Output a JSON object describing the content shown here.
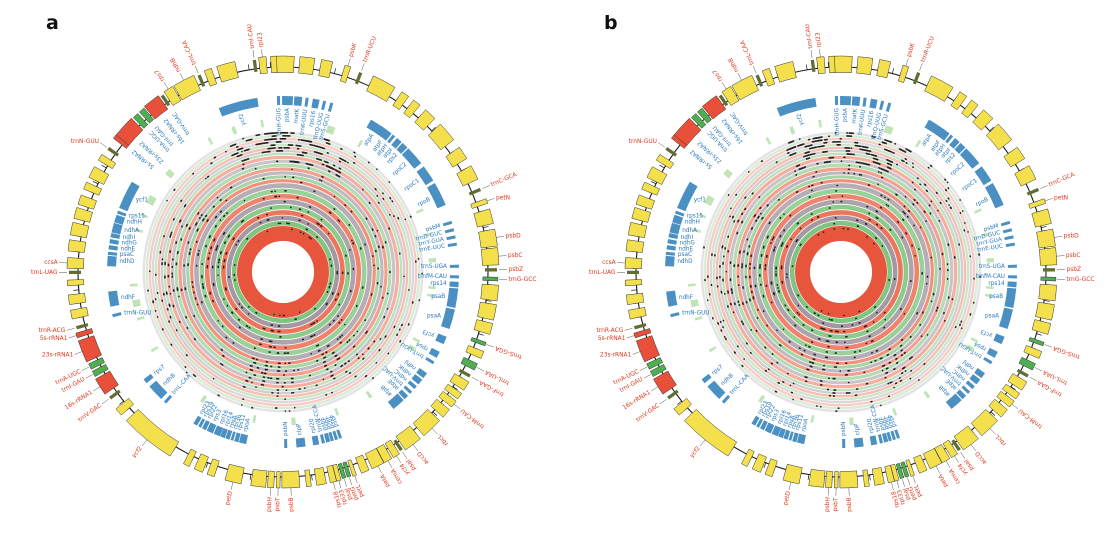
{
  "figure": {
    "panels": [
      {
        "id": "a",
        "letter": "a",
        "seed": 5
      },
      {
        "id": "b",
        "letter": "b",
        "seed": 11
      }
    ]
  },
  "chart_data": {
    "type": "circular-genome-map",
    "description": "Two circular plastid genome maps (panels a and b) with identical gene annotation rings: outer yellow/red/green gene boxes on a black circle with red labels outside, blue gene arcs with blue labels inside, pale-green accent marks, and 23 concentric colored rings (green/gray/salmon, fading outward) carrying black variant dots around a white center with an inner salmon annulus.",
    "colors": {
      "label_red": "#e0381c",
      "label_blue": "#2878bc",
      "box_yellow": "#f3e04c",
      "box_red": "#e8503a",
      "box_green": "#4fae50",
      "box_olive_tick": "#5f6e33",
      "blue_arc": "#4a90c2",
      "pale_green": "#b5dfa8",
      "ring_green": "#7fc57f",
      "ring_gray": "#a095a1",
      "ring_salmon": "#ec6a50",
      "inner_annulus": "#e6553c",
      "dot": "#222222",
      "circle_line": "#1a1a1a"
    },
    "rings": {
      "count": 23,
      "color_cycle": [
        "ring_green",
        "ring_gray",
        "ring_salmon"
      ],
      "fade_outward": true
    },
    "outer_genes": [
      [
        0,
        6,
        "y",
        "",
        ""
      ],
      [
        6.5,
        4,
        "y",
        "",
        ""
      ],
      [
        11.8,
        3,
        "y",
        "",
        ""
      ],
      [
        17.5,
        1.6,
        "y",
        "psbK",
        "r"
      ],
      [
        21.3,
        0.9,
        "t",
        "trnR-UCU",
        "r"
      ],
      [
        28,
        6.5,
        "y",
        "",
        ""
      ],
      [
        34.5,
        2.2,
        "y",
        "",
        ""
      ],
      [
        38.3,
        2.2,
        "y",
        "",
        ""
      ],
      [
        43,
        3.4,
        "y",
        "",
        ""
      ],
      [
        49.5,
        5.5,
        "y",
        "",
        ""
      ],
      [
        56.5,
        3.6,
        "y",
        "",
        ""
      ],
      [
        62.5,
        4,
        "y",
        "",
        ""
      ],
      [
        67.3,
        0.9,
        "t",
        "trnC-GCA",
        "r"
      ],
      [
        70.8,
        1.3,
        "y",
        "petN",
        "r"
      ],
      [
        75,
        4,
        "y",
        "",
        ""
      ],
      [
        80.8,
        4.6,
        "y",
        "psbD",
        "r"
      ],
      [
        85.8,
        4.6,
        "y",
        "psbC",
        "r"
      ],
      [
        89.4,
        0.9,
        "t",
        "psbZ",
        "r"
      ],
      [
        91.9,
        1,
        "g",
        "trnG-GCC",
        "r"
      ],
      [
        95.6,
        4.2,
        "y",
        "",
        ""
      ],
      [
        100.8,
        4.2,
        "y",
        "",
        ""
      ],
      [
        105.3,
        3,
        "y",
        "",
        ""
      ],
      [
        109.6,
        1,
        "g",
        "trnS-GGA",
        "r"
      ],
      [
        112.6,
        2,
        "y",
        "",
        ""
      ],
      [
        116.2,
        1.9,
        "g",
        "trnL-UAA",
        "r"
      ],
      [
        119.1,
        0.9,
        "t",
        "trnF-GAA",
        "r"
      ],
      [
        121.9,
        2.6,
        "y",
        "",
        ""
      ],
      [
        125.1,
        1.8,
        "y",
        "",
        ""
      ],
      [
        127.7,
        2,
        "y",
        "trnM-CAU",
        "r"
      ],
      [
        130.9,
        2.6,
        "y",
        "",
        ""
      ],
      [
        136.4,
        5.8,
        "y",
        "rbcL",
        "r"
      ],
      [
        143,
        5,
        "y",
        "accD",
        "r"
      ],
      [
        146.4,
        0.9,
        "t",
        "psaI",
        "r"
      ],
      [
        148.3,
        1.9,
        "y",
        "ycf4",
        "r"
      ],
      [
        150.9,
        2.3,
        "y",
        "cemA",
        "r"
      ],
      [
        153.9,
        3.5,
        "y",
        "petA",
        "r"
      ],
      [
        157.6,
        2.2,
        "y",
        "",
        ""
      ],
      [
        160.6,
        1,
        "y",
        "petL",
        "r"
      ],
      [
        162.1,
        1,
        "g",
        "petG",
        "r"
      ],
      [
        163.5,
        1,
        "g",
        "psaJ",
        "r"
      ],
      [
        165,
        1.2,
        "y",
        "rpl33",
        "r"
      ],
      [
        166.5,
        1.7,
        "y",
        "rps18",
        "r"
      ],
      [
        169.7,
        2.6,
        "y",
        "",
        ""
      ],
      [
        173.1,
        1.3,
        "y",
        "",
        ""
      ],
      [
        177.9,
        4.8,
        "y",
        "psbB",
        "r"
      ],
      [
        181.3,
        1,
        "y",
        "psbT",
        "r"
      ],
      [
        183.3,
        1.7,
        "y",
        "psbH",
        "r"
      ],
      [
        186.6,
        4,
        "y",
        "",
        ""
      ],
      [
        193.4,
        4.4,
        "y",
        "petD",
        "r"
      ],
      [
        199.6,
        2,
        "y",
        "",
        ""
      ],
      [
        203.1,
        2.4,
        "y",
        "",
        ""
      ],
      [
        206.6,
        1.7,
        "y",
        "",
        ""
      ],
      [
        219,
        15,
        "y",
        "ycf2",
        "r"
      ],
      [
        229.6,
        2.2,
        "y",
        "",
        ""
      ],
      [
        233.9,
        1,
        "t",
        "trnV-GAC",
        "r"
      ],
      [
        237.9,
        4.7,
        "r",
        "16s-rRNA1",
        "r"
      ],
      [
        241.7,
        1.6,
        "g",
        "trnI-GAU",
        "r"
      ],
      [
        243.9,
        1.6,
        "g",
        "trnA-UGC",
        "r"
      ],
      [
        248.4,
        6,
        "r",
        "23s-rRNA1",
        "r"
      ],
      [
        252.9,
        1.3,
        "r",
        "5s-rRNA1",
        "r"
      ],
      [
        254.9,
        1,
        "t",
        "trnR-ACG",
        "r"
      ],
      [
        258.6,
        2.4,
        "y",
        "",
        ""
      ],
      [
        262.6,
        2.6,
        "y",
        "",
        ""
      ],
      [
        267.1,
        1.5,
        "y",
        "",
        ""
      ],
      [
        269.9,
        1,
        "t",
        "trnL-UAG",
        "r"
      ],
      [
        272.4,
        2.9,
        "y",
        "ccsA",
        "r"
      ],
      [
        277.1,
        3,
        "y",
        "",
        ""
      ],
      [
        281.6,
        3.4,
        "y",
        "",
        ""
      ],
      [
        285.9,
        3,
        "y",
        "",
        ""
      ],
      [
        289.6,
        2.6,
        "y",
        "",
        ""
      ],
      [
        293.6,
        2,
        "y",
        "",
        ""
      ],
      [
        297.6,
        3.2,
        "y",
        "",
        ""
      ],
      [
        302.1,
        1.8,
        "y",
        "",
        ""
      ],
      [
        305.3,
        1,
        "t",
        "trnN-GUU",
        "r"
      ],
      [
        308.9,
        1.3,
        "r",
        "5s-rRNA2",
        "b"
      ],
      [
        312.4,
        6,
        "r",
        "23s-rRNA2",
        "b"
      ],
      [
        316.7,
        1.6,
        "g",
        "trnA-UGC",
        "b"
      ],
      [
        318.9,
        1.6,
        "g",
        "trnI-GAU",
        "b"
      ],
      [
        322.4,
        4.7,
        "r",
        "16s-rRNA2",
        "b"
      ],
      [
        325.6,
        1,
        "t",
        "trnV-GAC",
        "b"
      ],
      [
        327.9,
        2.7,
        "y",
        "rps7",
        "r"
      ],
      [
        332.6,
        6,
        "y",
        "ndhB",
        "r"
      ],
      [
        336.9,
        1,
        "t",
        "trnL-CAA",
        "r"
      ],
      [
        339.6,
        2,
        "y",
        "",
        ""
      ],
      [
        344.6,
        5,
        "y",
        "",
        ""
      ],
      [
        352.3,
        1,
        "t",
        "trnI-CAU",
        "r"
      ],
      [
        354.5,
        2,
        "y",
        "rpl23",
        "r"
      ],
      [
        357.5,
        1.6,
        "y",
        "",
        ""
      ]
    ],
    "inner_genes": [
      [
        358.5,
        1,
        "trnH-GUG"
      ],
      [
        1.5,
        3.6,
        "psbA"
      ],
      [
        5,
        2.6,
        "matK"
      ],
      [
        7.9,
        1,
        "trnK-UUU"
      ],
      [
        10.9,
        2.2,
        "rps16"
      ],
      [
        13.7,
        1,
        "trnQ-UUG"
      ],
      [
        16.1,
        1,
        "trnS-GCU"
      ],
      [
        33,
        6,
        "atpA"
      ],
      [
        36.9,
        2.4,
        "atpF"
      ],
      [
        39.1,
        1,
        "atpH"
      ],
      [
        41.4,
        2,
        "atpI"
      ],
      [
        43.9,
        2.2,
        "rps2"
      ],
      [
        48.6,
        6.4,
        "rpoC2"
      ],
      [
        55.9,
        5.6,
        "rpoC1"
      ],
      [
        63.6,
        8,
        "rpoB"
      ],
      [
        73.6,
        1,
        "psbM"
      ],
      [
        76.1,
        1,
        "trnD-GUC"
      ],
      [
        78.5,
        1,
        "trnY-GUA"
      ],
      [
        80.9,
        1,
        "trnE-UUC"
      ],
      [
        88.1,
        1,
        "trnS-UGA"
      ],
      [
        91.6,
        1,
        "trnfM-CAU"
      ],
      [
        94.1,
        1.8,
        "rps14"
      ],
      [
        98.6,
        6.4,
        "psaB"
      ],
      [
        105.6,
        6.6,
        "psaA"
      ],
      [
        112.9,
        2.6,
        "ycf3"
      ],
      [
        118.1,
        2.2,
        "rps4"
      ],
      [
        121.1,
        1,
        "trnT-UGU"
      ],
      [
        126.1,
        2,
        "ndhJ"
      ],
      [
        128.7,
        2,
        "ndhK"
      ],
      [
        131.1,
        1.2,
        "ndhC"
      ],
      [
        133.3,
        1,
        "trnV-UAC"
      ],
      [
        135.5,
        1.6,
        "atpE"
      ],
      [
        138.9,
        4.4,
        "atpB"
      ],
      [
        160.9,
        1,
        "psbF"
      ],
      [
        162.3,
        1,
        "psbJ"
      ],
      [
        163.7,
        1,
        "psbL"
      ],
      [
        165.1,
        1.4,
        "psbE"
      ],
      [
        166.7,
        1,
        "trnW-CCA"
      ],
      [
        169.1,
        2,
        "rpl20"
      ],
      [
        174.1,
        3,
        "clpP"
      ],
      [
        179.1,
        1,
        "psbN"
      ],
      [
        193.3,
        2.4,
        "rpoA"
      ],
      [
        195.4,
        1.4,
        "rps11"
      ],
      [
        196.9,
        0.8,
        "rpl36"
      ],
      [
        198.4,
        1.4,
        "rps8"
      ],
      [
        200.1,
        1.6,
        "rpl14"
      ],
      [
        202.1,
        2.2,
        "rpl16"
      ],
      [
        204.6,
        2.2,
        "rps3"
      ],
      [
        206.7,
        1.4,
        "rpl22"
      ],
      [
        208.3,
        1,
        "rps19"
      ],
      [
        209.9,
        1.4,
        "rpl23"
      ],
      [
        222.1,
        1,
        "trnL-CAA"
      ],
      [
        226.6,
        5.6,
        "ndhB"
      ],
      [
        231.6,
        1.6,
        "rps7"
      ],
      [
        255.6,
        1,
        "trnN-GUU"
      ],
      [
        261.1,
        5,
        "ndhF"
      ],
      [
        273.6,
        3.4,
        "ndhD"
      ],
      [
        276.1,
        1,
        "psaC"
      ],
      [
        278.1,
        1.4,
        "ndhE"
      ],
      [
        280.1,
        1.4,
        "ndhG"
      ],
      [
        282.1,
        1.4,
        "ndhI"
      ],
      [
        284.6,
        3.2,
        "ndhA"
      ],
      [
        287.7,
        2.6,
        "ndhH"
      ],
      [
        289.9,
        1,
        "rps15"
      ],
      [
        296.1,
        9.5,
        "ycf1"
      ],
      [
        345.1,
        13,
        "ycf2"
      ]
    ],
    "accent_marks": [
      [
        18.5,
        3
      ],
      [
        31,
        1
      ],
      [
        66,
        1
      ],
      [
        75.5,
        1
      ],
      [
        85.5,
        1.6
      ],
      [
        96,
        1
      ],
      [
        99,
        1
      ],
      [
        117,
        1
      ],
      [
        120.5,
        1.6
      ],
      [
        145,
        1.2
      ],
      [
        159,
        1
      ],
      [
        176,
        1.6
      ],
      [
        191,
        1
      ],
      [
        212,
        1.4
      ],
      [
        239,
        1
      ],
      [
        252,
        1
      ],
      [
        258,
        2.6
      ],
      [
        265,
        1
      ],
      [
        286,
        1
      ],
      [
        292,
        1
      ],
      [
        298.5,
        3.2
      ],
      [
        311,
        2.4
      ],
      [
        331,
        1
      ],
      [
        341,
        1.4
      ],
      [
        352,
        1
      ]
    ],
    "extra_ticks": [
      14.5,
      25,
      46.5,
      60.5,
      77.5,
      98,
      107.5,
      124,
      133,
      172,
      189,
      201.5,
      216,
      231,
      265,
      280,
      295.5,
      300.5,
      350.5,
      356.5
    ],
    "dot_columns": [
      148,
      155,
      176,
      183,
      190,
      198,
      253,
      260,
      267,
      274,
      281,
      288,
      296,
      304
    ]
  }
}
